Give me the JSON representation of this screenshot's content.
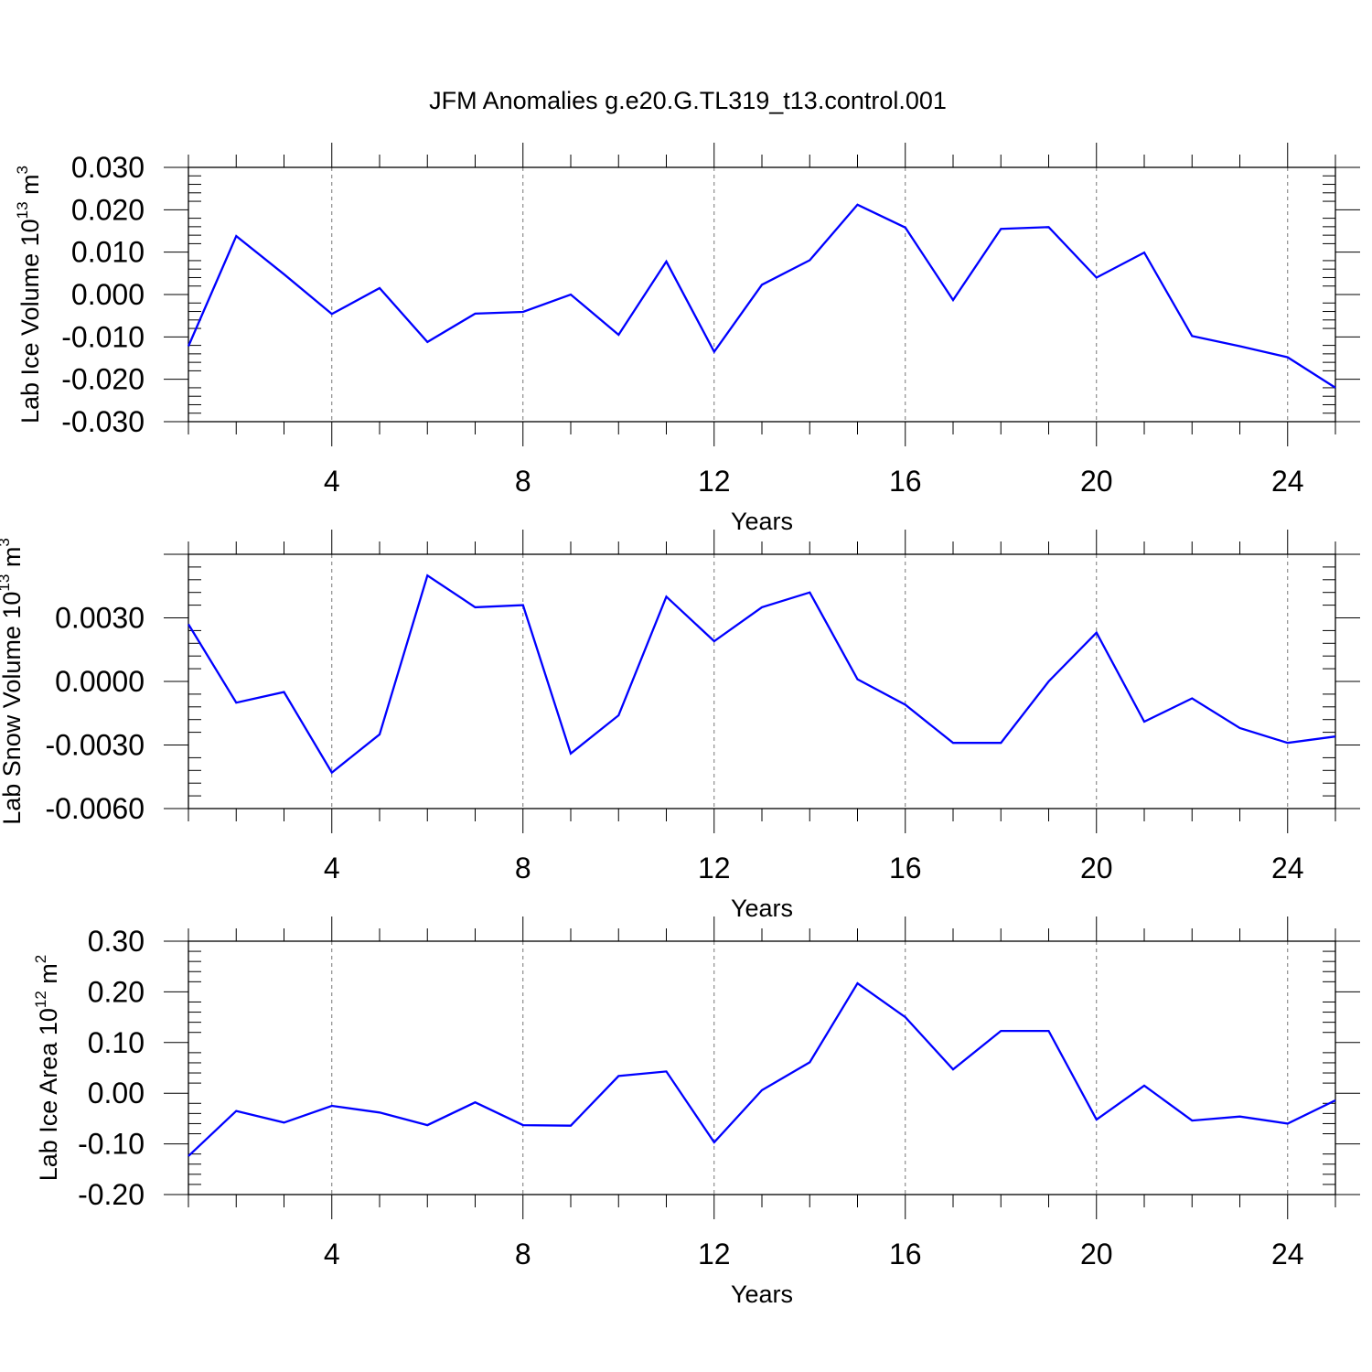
{
  "figure": {
    "title": "JFM Anomalies g.e20.G.TL319_t13.control.001",
    "line_color": "#0000ff"
  },
  "chart_data": [
    {
      "type": "line",
      "ylabel": "Lab Ice Volume 10",
      "ylabel_sup": "13",
      "ylabel_unit": "m",
      "ylabel_unit_sup": "3",
      "xlabel": "Years",
      "xlim": [
        1,
        25
      ],
      "ylim": [
        -0.03,
        0.03
      ],
      "yticks": [
        -0.03,
        -0.02,
        -0.01,
        0.0,
        0.01,
        0.02,
        0.03
      ],
      "yticklabels": [
        "-0.030",
        "-0.020",
        "-0.010",
        "0.000",
        "0.010",
        "0.020",
        "0.030"
      ],
      "xticks": [
        4,
        8,
        12,
        16,
        20,
        24
      ],
      "grid": "vertical dashed",
      "x": [
        1,
        2,
        3,
        4,
        5,
        6,
        7,
        8,
        9,
        10,
        11,
        12,
        13,
        14,
        15,
        16,
        17,
        18,
        19,
        20,
        21,
        22,
        23,
        24,
        25
      ],
      "y": [
        -0.0122,
        0.0138,
        0.0048,
        -0.0046,
        0.0015,
        -0.0112,
        -0.0045,
        -0.0041,
        0.0,
        -0.0095,
        0.0078,
        -0.0135,
        0.0023,
        0.0081,
        0.0212,
        0.0158,
        -0.0013,
        0.0155,
        0.0159,
        0.004,
        0.0099,
        -0.0098,
        -0.0122,
        -0.0148,
        -0.022
      ]
    },
    {
      "type": "line",
      "ylabel": "Lab Snow Volume 10",
      "ylabel_sup": "13",
      "ylabel_unit": "m",
      "ylabel_unit_sup": "3",
      "xlabel": "Years",
      "xlim": [
        1,
        25
      ],
      "ylim": [
        -0.006,
        0.006
      ],
      "yticks": [
        -0.006,
        -0.003,
        0.0,
        0.003
      ],
      "yticklabels": [
        "-0.0060",
        "-0.0030",
        "0.0000",
        "0.0030"
      ],
      "xticks": [
        4,
        8,
        12,
        16,
        20,
        24
      ],
      "grid": "vertical dashed",
      "x": [
        1,
        2,
        3,
        4,
        5,
        6,
        7,
        8,
        9,
        10,
        11,
        12,
        13,
        14,
        15,
        16,
        17,
        18,
        19,
        20,
        21,
        22,
        23,
        24,
        25
      ],
      "y": [
        0.0027,
        -0.001,
        -0.0005,
        -0.0043,
        -0.0025,
        0.005,
        0.0035,
        0.0036,
        -0.0034,
        -0.0016,
        0.004,
        0.0019,
        0.0035,
        0.0042,
        0.0001,
        -0.0011,
        -0.0029,
        -0.0029,
        0.0,
        0.0023,
        -0.0019,
        -0.0008,
        -0.0022,
        -0.0029,
        -0.0026
      ]
    },
    {
      "type": "line",
      "ylabel": "Lab Ice Area 10",
      "ylabel_sup": "12",
      "ylabel_unit": "m",
      "ylabel_unit_sup": "2",
      "xlabel": "Years",
      "xlim": [
        1,
        25
      ],
      "ylim": [
        -0.2,
        0.3
      ],
      "yticks": [
        -0.2,
        -0.1,
        0.0,
        0.1,
        0.2,
        0.3
      ],
      "yticklabels": [
        "-0.20",
        "-0.10",
        "0.00",
        "0.10",
        "0.20",
        "0.30"
      ],
      "xticks": [
        4,
        8,
        12,
        16,
        20,
        24
      ],
      "grid": "vertical dashed",
      "x": [
        1,
        2,
        3,
        4,
        5,
        6,
        7,
        8,
        9,
        10,
        11,
        12,
        13,
        14,
        15,
        16,
        17,
        18,
        19,
        20,
        21,
        22,
        23,
        24,
        25
      ],
      "y": [
        -0.124,
        -0.035,
        -0.058,
        -0.025,
        -0.038,
        -0.063,
        -0.018,
        -0.063,
        -0.064,
        0.034,
        0.043,
        -0.097,
        0.006,
        0.061,
        0.217,
        0.15,
        0.047,
        0.123,
        0.123,
        -0.052,
        0.015,
        -0.054,
        -0.046,
        -0.06,
        -0.014
      ]
    }
  ]
}
